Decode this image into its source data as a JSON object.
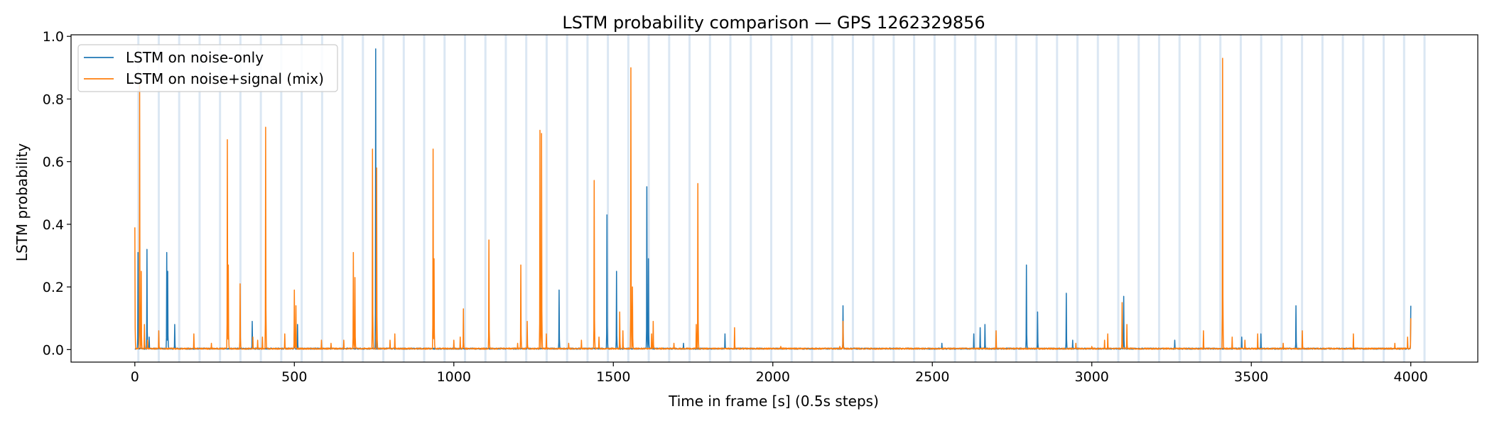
{
  "chart_data": {
    "type": "line",
    "title": "LSTM probability comparison — GPS 1262329856",
    "xlabel": "Time in frame [s] (0.5s steps)",
    "ylabel": "LSTM probability",
    "xlim": [
      -200,
      4210
    ],
    "ylim": [
      -0.04,
      1.005
    ],
    "xticks": [
      0,
      500,
      1000,
      1500,
      2000,
      2500,
      3000,
      3500,
      4000
    ],
    "yticks": [
      0.0,
      0.2,
      0.4,
      0.6,
      0.8,
      1.0
    ],
    "xtick_labels": [
      "0",
      "500",
      "1000",
      "1500",
      "2000",
      "2500",
      "3000",
      "3500",
      "4000"
    ],
    "ytick_labels": [
      "0.0",
      "0.2",
      "0.4",
      "0.6",
      "0.8",
      "1.0"
    ],
    "legend_position": "top-left",
    "x_range": [
      0,
      4000
    ],
    "background_band_spacing": 64,
    "background_band_start": 11,
    "background_band_end": 4050,
    "series": [
      {
        "name": "LSTM on noise-only",
        "color": "#1f77b4",
        "spikes": [
          [
            10,
            0.31
          ],
          [
            38,
            0.32
          ],
          [
            45,
            0.04
          ],
          [
            100,
            0.31
          ],
          [
            103,
            0.25
          ],
          [
            125,
            0.08
          ],
          [
            368,
            0.09
          ],
          [
            500,
            0.07
          ],
          [
            510,
            0.08
          ],
          [
            755,
            0.96
          ],
          [
            1480,
            0.43
          ],
          [
            1510,
            0.25
          ],
          [
            1605,
            0.52
          ],
          [
            1610,
            0.29
          ],
          [
            1330,
            0.19
          ],
          [
            1720,
            0.02
          ],
          [
            1850,
            0.05
          ],
          [
            2220,
            0.14
          ],
          [
            2530,
            0.02
          ],
          [
            2630,
            0.05
          ],
          [
            2650,
            0.07
          ],
          [
            2665,
            0.08
          ],
          [
            2795,
            0.27
          ],
          [
            2830,
            0.12
          ],
          [
            2920,
            0.18
          ],
          [
            2940,
            0.03
          ],
          [
            3100,
            0.17
          ],
          [
            3260,
            0.03
          ],
          [
            3470,
            0.04
          ],
          [
            3530,
            0.05
          ],
          [
            3640,
            0.14
          ],
          [
            4000,
            0.14
          ]
        ]
      },
      {
        "name": "LSTM on noise+signal (mix)",
        "color": "#ff7f0e",
        "spikes": [
          [
            0,
            0.39
          ],
          [
            15,
            0.85
          ],
          [
            20,
            0.25
          ],
          [
            30,
            0.08
          ],
          [
            40,
            0.03
          ],
          [
            75,
            0.06
          ],
          [
            185,
            0.05
          ],
          [
            240,
            0.02
          ],
          [
            290,
            0.67
          ],
          [
            293,
            0.27
          ],
          [
            330,
            0.21
          ],
          [
            370,
            0.04
          ],
          [
            385,
            0.03
          ],
          [
            400,
            0.04
          ],
          [
            410,
            0.71
          ],
          [
            470,
            0.05
          ],
          [
            500,
            0.19
          ],
          [
            505,
            0.14
          ],
          [
            585,
            0.03
          ],
          [
            615,
            0.02
          ],
          [
            655,
            0.03
          ],
          [
            685,
            0.31
          ],
          [
            690,
            0.23
          ],
          [
            745,
            0.64
          ],
          [
            758,
            0.58
          ],
          [
            800,
            0.03
          ],
          [
            815,
            0.05
          ],
          [
            935,
            0.64
          ],
          [
            938,
            0.29
          ],
          [
            1000,
            0.03
          ],
          [
            1020,
            0.04
          ],
          [
            1030,
            0.13
          ],
          [
            1110,
            0.35
          ],
          [
            1200,
            0.02
          ],
          [
            1210,
            0.27
          ],
          [
            1230,
            0.09
          ],
          [
            1270,
            0.7
          ],
          [
            1275,
            0.69
          ],
          [
            1290,
            0.05
          ],
          [
            1360,
            0.02
          ],
          [
            1400,
            0.03
          ],
          [
            1440,
            0.54
          ],
          [
            1455,
            0.04
          ],
          [
            1520,
            0.12
          ],
          [
            1530,
            0.06
          ],
          [
            1555,
            0.9
          ],
          [
            1560,
            0.2
          ],
          [
            1620,
            0.05
          ],
          [
            1625,
            0.09
          ],
          [
            1690,
            0.02
          ],
          [
            1760,
            0.08
          ],
          [
            1765,
            0.53
          ],
          [
            1880,
            0.07
          ],
          [
            2025,
            0.01
          ],
          [
            2210,
            0.01
          ],
          [
            2220,
            0.09
          ],
          [
            2700,
            0.06
          ],
          [
            2950,
            0.02
          ],
          [
            3000,
            0.01
          ],
          [
            3040,
            0.03
          ],
          [
            3050,
            0.05
          ],
          [
            3095,
            0.15
          ],
          [
            3110,
            0.08
          ],
          [
            3350,
            0.06
          ],
          [
            3410,
            0.93
          ],
          [
            3440,
            0.04
          ],
          [
            3480,
            0.03
          ],
          [
            3520,
            0.05
          ],
          [
            3600,
            0.02
          ],
          [
            3660,
            0.06
          ],
          [
            3820,
            0.05
          ],
          [
            3950,
            0.02
          ],
          [
            3990,
            0.04
          ],
          [
            4000,
            0.1
          ]
        ]
      }
    ]
  }
}
